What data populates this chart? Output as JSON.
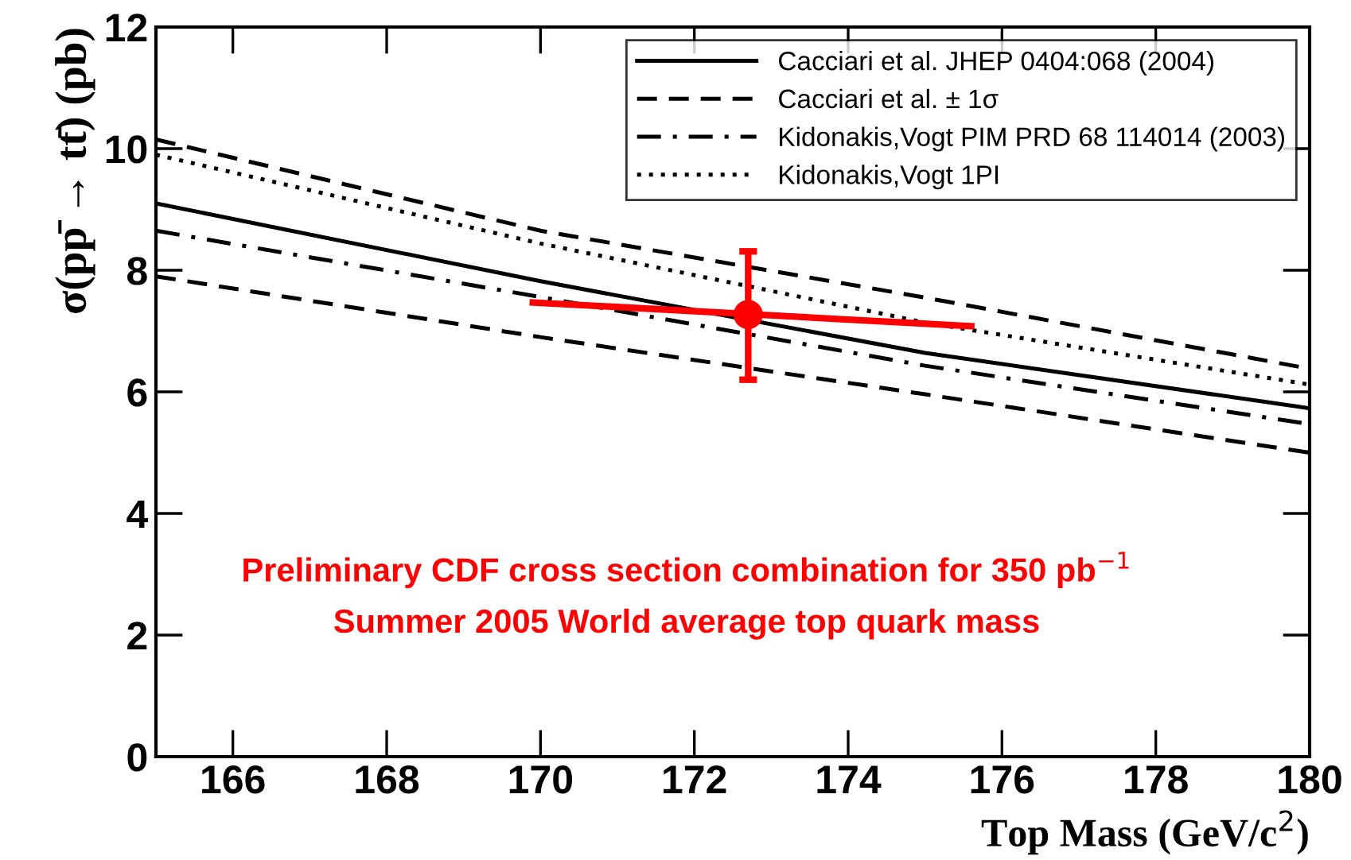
{
  "chart_data": {
    "type": "line",
    "xlabel": "Top Mass (GeV/c$^{2}$)",
    "ylabel": "σ(pp̄ → tt̄) (pb)",
    "xlim": [
      165,
      180
    ],
    "ylim": [
      0,
      12
    ],
    "xticks": [
      166,
      168,
      170,
      172,
      174,
      176,
      178,
      180
    ],
    "yticks": [
      0,
      2,
      4,
      6,
      8,
      10,
      12
    ],
    "grid": false,
    "legend": "top right",
    "marker": "none",
    "series": [
      {
        "name": "Cacciari et al. JHEP 0404:068 (2004)",
        "color": "#000000",
        "line_style": "solid",
        "x": [
          165,
          170,
          175,
          180
        ],
        "values": [
          9.1,
          7.82,
          6.64,
          5.73
        ]
      },
      {
        "name": "Cacciari et al. ± 1σ",
        "color": "#000000",
        "line_style": "dashed",
        "x": [
          165,
          170,
          175,
          180
        ],
        "values": [
          10.15,
          8.65,
          7.55,
          6.38
        ]
      },
      {
        "color": "#000000",
        "line_style": "dashed",
        "x": [
          165,
          170,
          175,
          180
        ],
        "values": [
          7.9,
          6.9,
          5.96,
          5.0
        ]
      },
      {
        "name": "Kidonakis,Vogt PIM PRD 68 114014 (2003)",
        "color": "#000000",
        "line_style": "dashdot",
        "x": [
          165,
          170,
          175,
          180
        ],
        "values": [
          8.65,
          7.56,
          6.43,
          5.47
        ]
      },
      {
        "name": "Kidonakis,Vogt 1PI",
        "color": "#000000",
        "line_style": "dotted",
        "x": [
          165,
          170,
          175,
          180
        ],
        "values": [
          9.9,
          8.44,
          7.14,
          6.12
        ]
      },
      {
        "color": "#ff0000",
        "line_style": "solid",
        "x": [
          169.9,
          175.6
        ],
        "values": [
          7.47,
          7.08
        ]
      },
      {
        "type": "scatter",
        "color": "#ff0000",
        "marker": "circle",
        "x": [
          172.7
        ],
        "values": [
          7.27
        ],
        "errors": [
          [
            6.2,
            8.31
          ]
        ]
      }
    ],
    "annotations": [
      "Preliminary CDF cross section combination for 350 pb$^{−1}$",
      "Summer 2005 World average top quark mass"
    ]
  }
}
